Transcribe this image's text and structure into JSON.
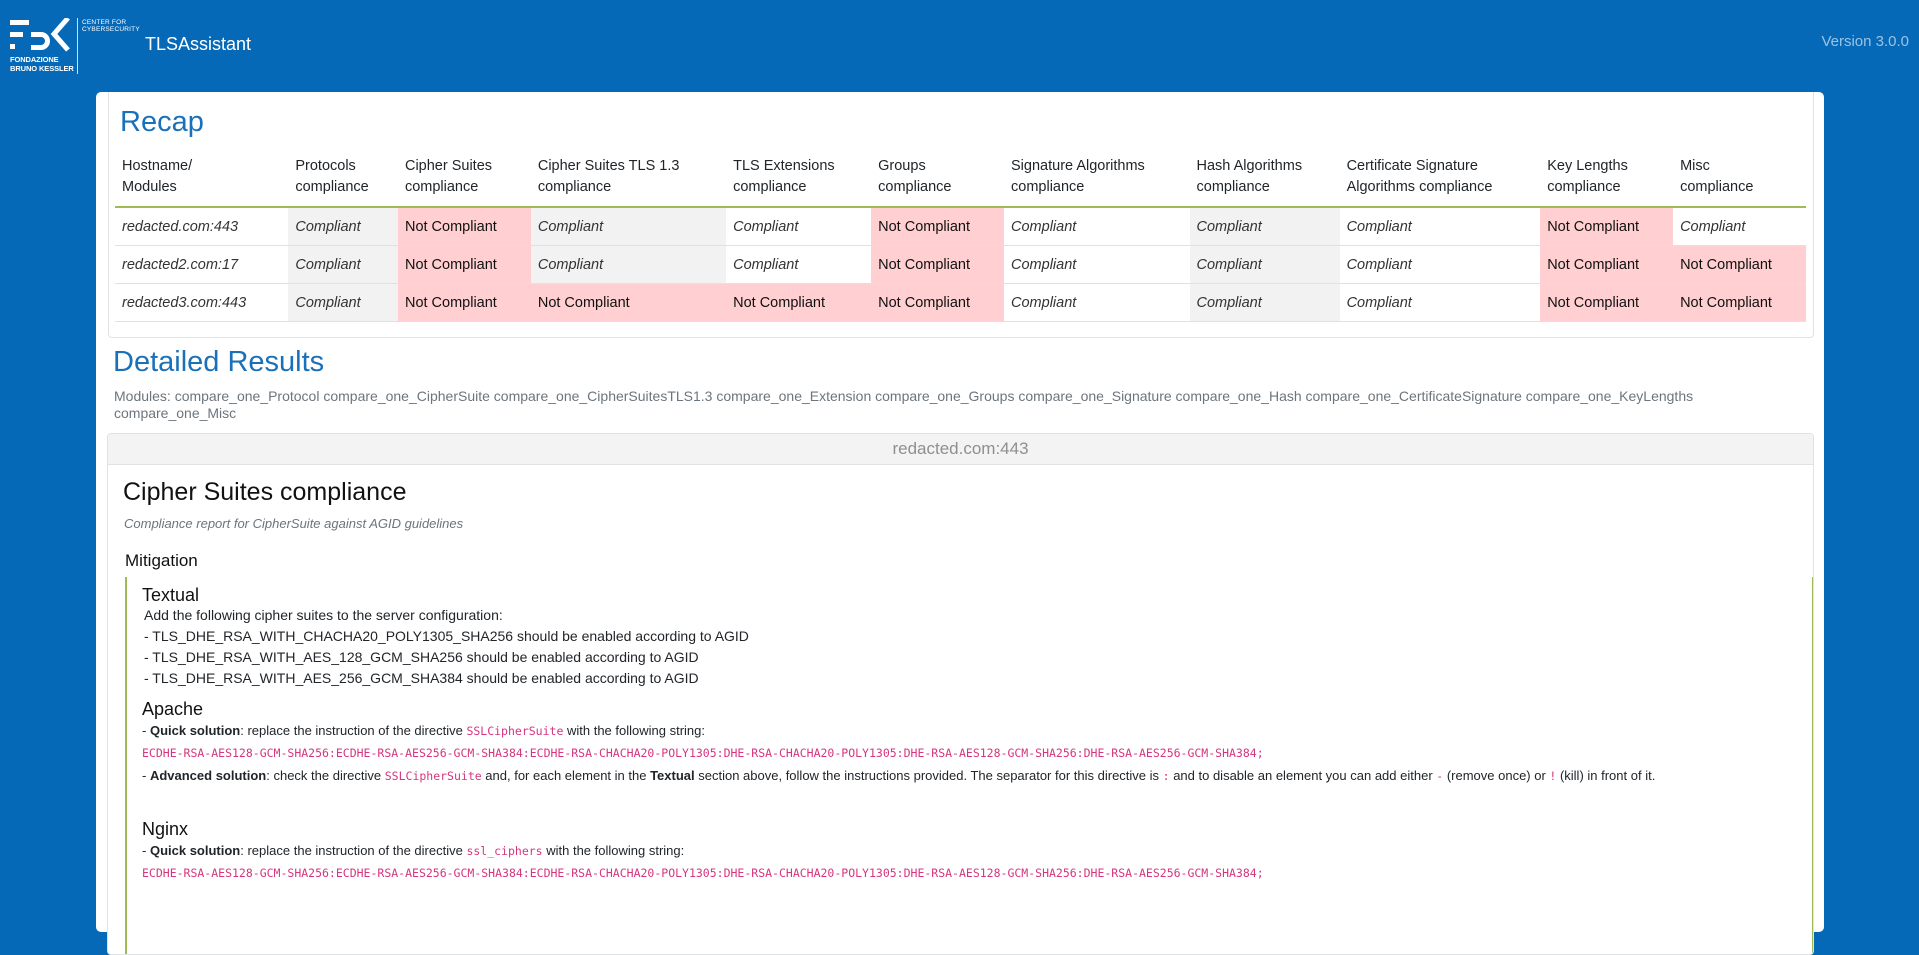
{
  "header": {
    "logo_center": "CENTER FOR\nCYBERSECURITY",
    "logo_org": "FONDAZIONE\nBRUNO KESSLER",
    "app_title": "TLSAssistant",
    "version": "Version 3.0.0"
  },
  "recap": {
    "title": "Recap",
    "columns": [
      "Hostname/\nModules",
      "Protocols\ncompliance",
      "Cipher Suites\ncompliance",
      "Cipher Suites TLS 1.3\ncompliance",
      "TLS Extensions\ncompliance",
      "Groups\ncompliance",
      "Signature Algorithms\ncompliance",
      "Hash Algorithms\ncompliance",
      "Certificate Signature\nAlgorithms compliance",
      "Key Lengths\ncompliance",
      "Misc\ncompliance"
    ],
    "rows": [
      {
        "host": "redacted.com:443",
        "cells": [
          "Compliant",
          "Not Compliant",
          "Compliant",
          "Compliant",
          "Not Compliant",
          "Compliant",
          "Compliant",
          "Compliant",
          "Not Compliant",
          "Compliant"
        ]
      },
      {
        "host": "redacted2.com:17",
        "cells": [
          "Compliant",
          "Not Compliant",
          "Compliant",
          "Compliant",
          "Not Compliant",
          "Compliant",
          "Compliant",
          "Compliant",
          "Not Compliant",
          "Not Compliant"
        ]
      },
      {
        "host": "redacted3.com:443",
        "cells": [
          "Compliant",
          "Not Compliant",
          "Not Compliant",
          "Not Compliant",
          "Not Compliant",
          "Compliant",
          "Compliant",
          "Compliant",
          "Not Compliant",
          "Not Compliant"
        ]
      }
    ],
    "colors": {
      "compliant_bg": "#f2f2f2",
      "not_compliant_bg": "#ffcfd1",
      "accent": "#9fbb53"
    }
  },
  "details": {
    "title": "Detailed Results",
    "modules": "Modules: compare_one_Protocol compare_one_CipherSuite compare_one_CipherSuitesTLS1.3 compare_one_Extension compare_one_Groups compare_one_Signature compare_one_Hash compare_one_CertificateSignature compare_one_KeyLengths compare_one_Misc",
    "host": "redacted.com:443",
    "section": {
      "title": "Cipher Suites compliance",
      "subtitle": "Compliance report for CipherSuite against AGID guidelines",
      "mitigation_title": "Mitigation",
      "textual": {
        "title": "Textual",
        "lines": [
          "Add the following cipher suites to the server configuration:",
          "- TLS_DHE_RSA_WITH_CHACHA20_POLY1305_SHA256 should be enabled according to AGID",
          "- TLS_DHE_RSA_WITH_AES_128_GCM_SHA256 should be enabled according to AGID",
          "- TLS_DHE_RSA_WITH_AES_256_GCM_SHA384 should be enabled according to AGID"
        ]
      },
      "apache": {
        "title": "Apache",
        "quick_prefix": "- ",
        "quick_label": "Quick solution",
        "quick_text": ": replace the instruction of the directive ",
        "directive": "SSLCipherSuite",
        "quick_suffix": " with the following string:",
        "cipher_string": "ECDHE-RSA-AES128-GCM-SHA256:ECDHE-RSA-AES256-GCM-SHA384:ECDHE-RSA-CHACHA20-POLY1305:DHE-RSA-CHACHA20-POLY1305:DHE-RSA-AES128-GCM-SHA256:DHE-RSA-AES256-GCM-SHA384;",
        "adv_prefix": "- ",
        "adv_label": "Advanced solution",
        "adv_text1": ": check the directive ",
        "adv_text2": " and, for each element in the ",
        "adv_textual": "Textual",
        "adv_text3": " section above, follow the instructions provided. The separator for this directive is ",
        "sep": ":",
        "adv_text4": " and to disable an element you can add either ",
        "minus": "-",
        "adv_text5": " (remove once) or ",
        "bang": "!",
        "adv_text6": " (kill) in front of it."
      },
      "nginx": {
        "title": "Nginx",
        "quick_prefix": "- ",
        "quick_label": "Quick solution",
        "quick_text": ": replace the instruction of the directive ",
        "directive": "ssl_ciphers",
        "quick_suffix": " with the following string:",
        "cipher_string": "ECDHE-RSA-AES128-GCM-SHA256:ECDHE-RSA-AES256-GCM-SHA384:ECDHE-RSA-CHACHA20-POLY1305:DHE-RSA-CHACHA20-POLY1305:DHE-RSA-AES128-GCM-SHA256:DHE-RSA-AES256-GCM-SHA384;"
      }
    }
  }
}
